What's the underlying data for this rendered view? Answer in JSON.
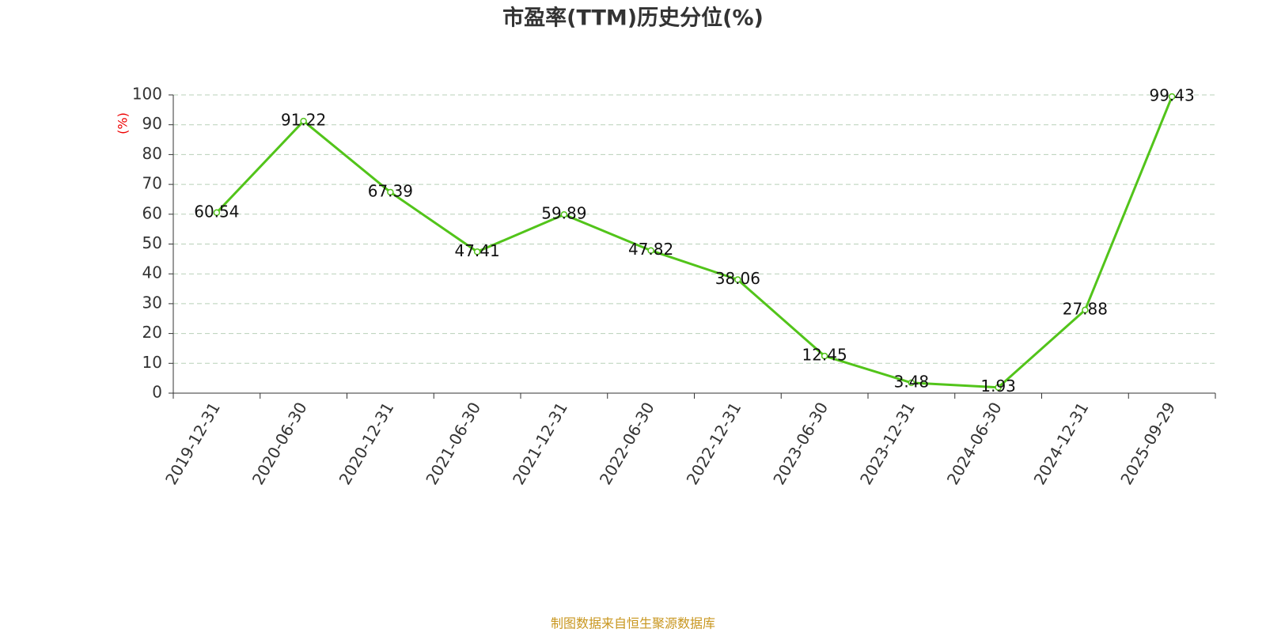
{
  "chart_data": {
    "type": "line",
    "title": "市盈率(TTM)历史分位(%)",
    "y_label": "(%)",
    "source": "制图数据来自恒生聚源数据库",
    "categories": [
      "2019-12-31",
      "2020-06-30",
      "2020-12-31",
      "2021-06-30",
      "2021-12-31",
      "2022-06-30",
      "2022-12-31",
      "2023-06-30",
      "2023-12-31",
      "2024-06-30",
      "2024-12-31",
      "2025-09-29"
    ],
    "values": [
      60.54,
      91.22,
      67.39,
      47.41,
      59.89,
      47.82,
      38.06,
      12.45,
      3.48,
      1.93,
      27.88,
      99.43
    ],
    "color": "#52c41a",
    "ylim": [
      0,
      100
    ],
    "yticks": [
      0,
      10,
      20,
      30,
      40,
      50,
      60,
      70,
      80,
      90,
      100
    ],
    "grid": true
  }
}
